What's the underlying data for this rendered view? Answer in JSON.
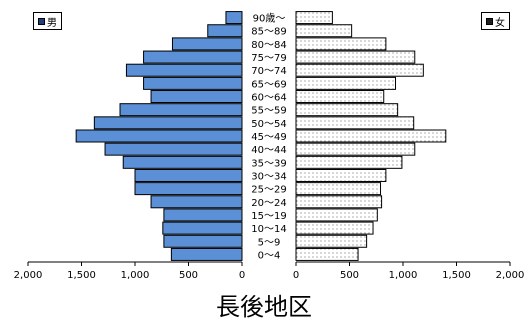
{
  "title": "長後地区",
  "chart_data": {
    "type": "bar",
    "orientation": "horizontal-population-pyramid",
    "categories": [
      "90歳～",
      "85～89",
      "80～84",
      "75～79",
      "70～74",
      "65～69",
      "60～64",
      "55～59",
      "50～54",
      "45～49",
      "40～44",
      "35～39",
      "30～34",
      "25～29",
      "20～24",
      "15～19",
      "10～14",
      "5～9",
      "0～4"
    ],
    "series": [
      {
        "name": "男",
        "color": "#5b8fd6",
        "values": [
          150,
          320,
          650,
          920,
          1080,
          920,
          850,
          1140,
          1380,
          1550,
          1280,
          1110,
          1000,
          1000,
          850,
          730,
          740,
          730,
          660
        ]
      },
      {
        "name": "女",
        "color": "#ffffff",
        "values": [
          340,
          520,
          840,
          1110,
          1190,
          930,
          820,
          950,
          1100,
          1400,
          1110,
          990,
          840,
          790,
          800,
          760,
          720,
          660,
          580
        ]
      }
    ],
    "xlim": [
      0,
      2000
    ],
    "ticks": [
      {
        "value": 2000,
        "label": "2,000"
      },
      {
        "value": 1500,
        "label": "1,500"
      },
      {
        "value": 1000,
        "label": "1,000"
      },
      {
        "value": 500,
        "label": "500"
      },
      {
        "value": 0,
        "label": "0"
      }
    ],
    "legend": {
      "male": "男",
      "female": "女"
    },
    "grid": false
  }
}
